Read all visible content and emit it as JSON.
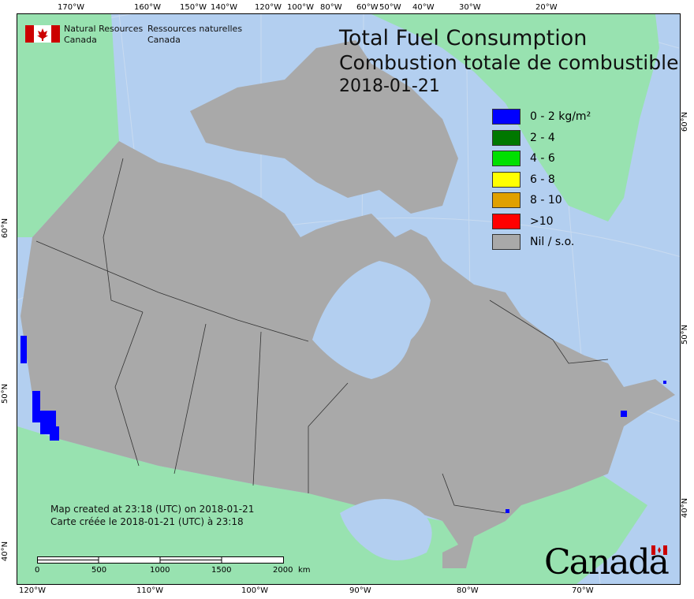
{
  "header": {
    "agency_en": "Natural Resources\nCanada",
    "agency_en_line1": "Natural Resources",
    "agency_en_line2": "Canada",
    "agency_fr_line1": "Ressources naturelles",
    "agency_fr_line2": "Canada"
  },
  "title": {
    "en": "Total Fuel Consumption",
    "fr": "Combustion totale de combustible",
    "date": "2018-01-21"
  },
  "legend": [
    {
      "label": "0 - 2 kg/m²",
      "color": "#0000ff"
    },
    {
      "label": "2 - 4",
      "color": "#007800"
    },
    {
      "label": "4 - 6",
      "color": "#00e000"
    },
    {
      "label": "6 - 8",
      "color": "#ffff00"
    },
    {
      "label": "8 - 10",
      "color": "#e0a000"
    },
    {
      "label": ">10",
      "color": "#ff0000"
    },
    {
      "label": "Nil / s.o.",
      "color": "#a9a9a9"
    }
  ],
  "created": {
    "en": "Map created at 23:18 (UTC) on 2018-01-21",
    "fr": "Carte créée le 2018-01-21 (UTC) à 23:18"
  },
  "scale_bar": {
    "labels": [
      "0",
      "500",
      "1000",
      "1500",
      "2000"
    ],
    "unit": "km"
  },
  "axes": {
    "top": [
      "170°W",
      "160°W",
      "150°W",
      "140°W",
      "120°W",
      "100°W",
      "80°W",
      "60°W",
      "50°W",
      "40°W",
      "30°W",
      "20°W"
    ],
    "bottom": [
      "120°W",
      "110°W",
      "100°W",
      "90°W",
      "80°W",
      "70°W"
    ],
    "left": [
      "60°N",
      "50°N",
      "40°N"
    ],
    "right": [
      "60°N",
      "50°N",
      "40°N"
    ]
  },
  "wordmark": "Canada",
  "colors": {
    "water": "#b3cff0",
    "foreign_land": "#98e2b0",
    "nil": "#a9a9a9",
    "fire": "#0000ff"
  }
}
